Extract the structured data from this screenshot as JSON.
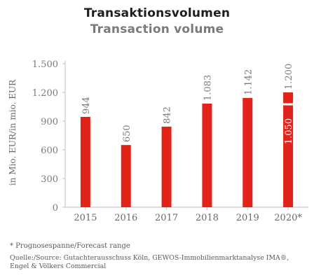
{
  "title": "Transaktionsvolumen",
  "subtitle": "Transaction volume",
  "footnote": "* Prognosespanne/Forecast range",
  "source_line1": "Quelle:/Source: Gutachterausschuss Köln, GEWOS-Immobilienmarktanalyse IMA®,",
  "source_line2": "Engel & Völkers Commercial",
  "chart_data": {
    "type": "bar",
    "categories": [
      "2015",
      "2016",
      "2017",
      "2018",
      "2019",
      "2020*"
    ],
    "values": [
      944,
      650,
      842,
      1083,
      1142,
      1200
    ],
    "value_labels": [
      "944",
      "650",
      "842",
      "1.083",
      "1.142",
      "1.200"
    ],
    "range_bar": {
      "category": "2020*",
      "low": 1050,
      "high": 1200,
      "low_label": "1.050",
      "high_label": "1.200"
    },
    "ylabel": "in Mio. EUR/in mio. EUR",
    "ylim": [
      0,
      1500
    ],
    "yticks": [
      0,
      300,
      600,
      900,
      1200,
      1500
    ],
    "ytick_labels": [
      "0",
      "300",
      "600",
      "900",
      "1.200",
      "1.500"
    ],
    "bar_color": "#e2231a",
    "grid": false
  }
}
